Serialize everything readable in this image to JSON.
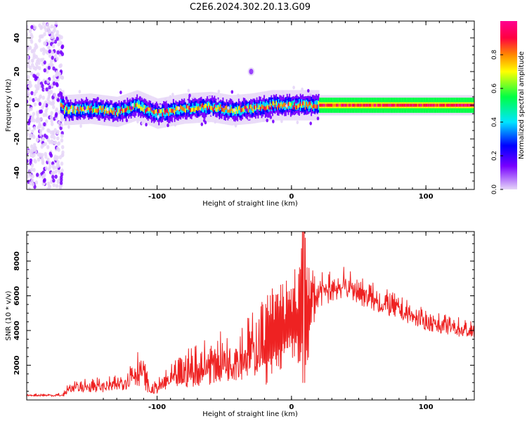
{
  "figure": {
    "title": "C2E6.2024.302.20.13.G09"
  },
  "chart_data": [
    {
      "type": "heatmap",
      "xlabel": "Height of straight line (km)",
      "ylabel": "Frequency (Hz)",
      "xlim": [
        -197,
        136
      ],
      "ylim": [
        -50,
        50
      ],
      "xticks": [
        -100,
        0,
        100
      ],
      "yticks": [
        -40,
        -20,
        0,
        20,
        40
      ],
      "colorbar": {
        "label": "Normalized spectral amplitude",
        "range": [
          0,
          1
        ],
        "ticks": [
          "0.0",
          "0.2",
          "0.4",
          "0.6",
          "0.8"
        ],
        "colormap": [
          "#e6d6f8",
          "#7700ff",
          "#0000ff",
          "#00e5ff",
          "#00ff44",
          "#ffff00",
          "#ff8800",
          "#ff0040",
          "#ff0090"
        ]
      },
      "centerline_hz": [
        {
          "x": -170,
          "f": -3
        },
        {
          "x": -150,
          "f": -2
        },
        {
          "x": -130,
          "f": -4
        },
        {
          "x": -115,
          "f": 0
        },
        {
          "x": -100,
          "f": -5
        },
        {
          "x": -80,
          "f": -2
        },
        {
          "x": -60,
          "f": -1
        },
        {
          "x": -45,
          "f": -3
        },
        {
          "x": -30,
          "f": -2
        },
        {
          "x": -15,
          "f": 0
        },
        {
          "x": 0,
          "f": 0
        },
        {
          "x": 50,
          "f": 0
        },
        {
          "x": 100,
          "f": 0
        },
        {
          "x": 136,
          "f": 0
        }
      ],
      "features": [
        {
          "desc": "broadband noise columns",
          "x_range": [
            -197,
            -170
          ],
          "f_range": [
            -50,
            50
          ]
        },
        {
          "desc": "isolated blob",
          "x": -30,
          "f": 20
        }
      ]
    },
    {
      "type": "line",
      "xlabel": "Height of straight line (km)",
      "ylabel": "SNR (10 * v/v)",
      "xlim": [
        -197,
        136
      ],
      "ylim": [
        0,
        9700
      ],
      "xticks": [
        -100,
        0,
        100
      ],
      "yticks": [
        2000,
        4000,
        6000,
        8000
      ],
      "color": "#ee2222",
      "envelope": [
        {
          "x": -197,
          "lo": 200,
          "hi": 350
        },
        {
          "x": -170,
          "lo": 150,
          "hi": 400
        },
        {
          "x": -165,
          "lo": 300,
          "hi": 1100
        },
        {
          "x": -150,
          "lo": 300,
          "hi": 1300
        },
        {
          "x": -130,
          "lo": 300,
          "hi": 1400
        },
        {
          "x": -112,
          "lo": 400,
          "hi": 3300
        },
        {
          "x": -105,
          "lo": 200,
          "hi": 800
        },
        {
          "x": -90,
          "lo": 300,
          "hi": 2000
        },
        {
          "x": -70,
          "lo": 300,
          "hi": 3500
        },
        {
          "x": -50,
          "lo": 500,
          "hi": 4000
        },
        {
          "x": -30,
          "lo": 600,
          "hi": 5000
        },
        {
          "x": -20,
          "lo": 800,
          "hi": 6000
        },
        {
          "x": -10,
          "lo": 1500,
          "hi": 7000
        },
        {
          "x": 0,
          "lo": 2500,
          "hi": 7000
        },
        {
          "x": 9,
          "lo": 1000,
          "hi": 9700
        },
        {
          "x": 20,
          "lo": 5000,
          "hi": 7300
        },
        {
          "x": 40,
          "lo": 5600,
          "hi": 7700
        },
        {
          "x": 60,
          "lo": 4800,
          "hi": 6800
        },
        {
          "x": 80,
          "lo": 4400,
          "hi": 6000
        },
        {
          "x": 100,
          "lo": 3800,
          "hi": 5200
        },
        {
          "x": 120,
          "lo": 3500,
          "hi": 4900
        },
        {
          "x": 136,
          "lo": 3300,
          "hi": 4500
        }
      ]
    }
  ]
}
